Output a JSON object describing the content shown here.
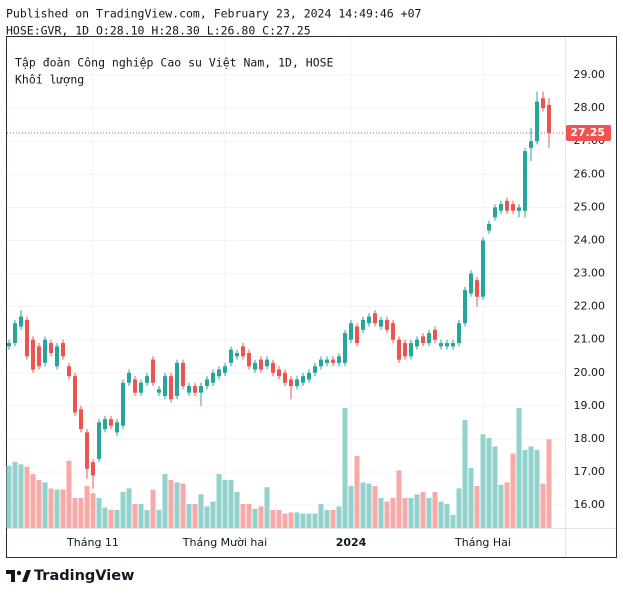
{
  "header": {
    "published": "Published on TradingView.com, February 23, 2024 14:49:46 +07",
    "ohlc_line": "HOSE:GVR, 1D O:28.10 H:28.30 L:26.80 C:27.25"
  },
  "footer": {
    "logo": "TradingView"
  },
  "chart_data": {
    "type": "candlestick",
    "title": "Tập đoàn Công nghiệp Cao su Việt Nam, 1D, HOSE",
    "volume_label": "Khối lượng",
    "categories": [
      null,
      null,
      null,
      null,
      null,
      null,
      null,
      null,
      null,
      null,
      null,
      null,
      null,
      null,
      "Tháng 11",
      null,
      null,
      null,
      null,
      null,
      null,
      null,
      null,
      null,
      null,
      null,
      null,
      null,
      null,
      null,
      null,
      null,
      null,
      null,
      null,
      null,
      "Tháng Mười hai",
      null,
      null,
      null,
      null,
      null,
      null,
      null,
      null,
      null,
      null,
      null,
      null,
      null,
      null,
      null,
      null,
      null,
      null,
      null,
      null,
      "2024",
      null,
      null,
      null,
      null,
      null,
      null,
      null,
      null,
      null,
      null,
      null,
      null,
      null,
      null,
      null,
      null,
      null,
      null,
      null,
      null,
      null,
      "Tháng Hai",
      null,
      null,
      null,
      null,
      null,
      null,
      null,
      null,
      null,
      null,
      null
    ],
    "open": [
      20.8,
      20.9,
      21.4,
      21.6,
      21.0,
      20.8,
      20.3,
      20.9,
      20.2,
      20.9,
      20.2,
      19.9,
      18.9,
      18.2,
      17.3,
      17.4,
      18.3,
      18.6,
      18.2,
      18.4,
      19.7,
      19.8,
      19.4,
      19.7,
      20.4,
      19.4,
      19.3,
      19.9,
      19.3,
      20.3,
      19.4,
      19.6,
      19.4,
      19.6,
      19.7,
      19.9,
      20.0,
      20.3,
      20.5,
      20.8,
      20.6,
      20.1,
      20.4,
      20.2,
      20.3,
      20.1,
      20.0,
      19.8,
      19.6,
      19.7,
      19.8,
      20.0,
      20.2,
      20.3,
      20.4,
      20.3,
      20.3,
      21.0,
      21.4,
      21.3,
      21.5,
      21.8,
      21.4,
      21.6,
      21.5,
      21.0,
      20.9,
      20.5,
      20.8,
      21.1,
      20.9,
      21.3,
      20.8,
      20.8,
      20.8,
      20.9,
      21.5,
      22.4,
      22.8,
      22.3,
      24.3,
      24.7,
      24.9,
      25.2,
      25.1,
      24.9,
      24.9,
      26.8,
      27.0,
      28.3,
      28.1
    ],
    "high": [
      21.0,
      21.6,
      21.9,
      21.7,
      21.1,
      20.9,
      21.1,
      21.0,
      20.9,
      21.0,
      20.3,
      20.0,
      19.0,
      18.3,
      17.4,
      18.6,
      18.7,
      18.7,
      18.6,
      19.8,
      20.1,
      19.9,
      19.8,
      20.0,
      20.5,
      19.6,
      20.0,
      20.0,
      20.4,
      20.4,
      19.7,
      19.7,
      19.7,
      19.9,
      20.1,
      20.2,
      20.3,
      20.8,
      20.7,
      20.9,
      20.7,
      20.4,
      20.5,
      20.5,
      20.4,
      20.2,
      20.1,
      19.9,
      19.9,
      20.0,
      20.1,
      20.3,
      20.5,
      20.5,
      20.5,
      20.6,
      21.3,
      21.6,
      21.5,
      21.7,
      21.8,
      21.9,
      21.7,
      21.7,
      21.6,
      21.1,
      21.0,
      21.0,
      21.1,
      21.2,
      21.3,
      21.4,
      21.0,
      21.0,
      21.0,
      21.6,
      22.6,
      23.1,
      22.9,
      24.1,
      24.6,
      25.1,
      25.2,
      25.3,
      25.2,
      25.1,
      26.8,
      27.4,
      28.5,
      28.5,
      28.3
    ],
    "low": [
      20.7,
      20.8,
      21.3,
      20.4,
      20.0,
      20.1,
      20.2,
      20.5,
      20.1,
      20.4,
      19.8,
      18.7,
      18.2,
      16.8,
      16.5,
      17.3,
      18.2,
      18.3,
      18.1,
      18.3,
      19.6,
      19.3,
      19.3,
      19.6,
      19.6,
      19.3,
      19.2,
      19.1,
      19.2,
      19.5,
      19.3,
      19.3,
      19.0,
      19.5,
      19.6,
      19.8,
      19.9,
      20.2,
      20.4,
      20.4,
      20.1,
      20.0,
      20.0,
      20.1,
      19.9,
      19.8,
      19.6,
      19.2,
      19.5,
      19.6,
      19.7,
      19.9,
      20.1,
      20.2,
      20.2,
      20.2,
      20.2,
      20.9,
      20.8,
      21.2,
      21.4,
      21.4,
      21.3,
      21.2,
      20.9,
      20.3,
      20.4,
      20.4,
      20.7,
      20.8,
      20.8,
      20.9,
      20.7,
      20.7,
      20.7,
      20.8,
      21.4,
      22.3,
      22.0,
      22.2,
      24.2,
      24.6,
      24.8,
      24.8,
      24.8,
      24.7,
      24.7,
      26.4,
      26.9,
      27.9,
      26.8
    ],
    "close": [
      20.9,
      21.5,
      21.7,
      20.5,
      20.1,
      20.2,
      21.0,
      20.6,
      20.8,
      20.5,
      19.9,
      18.8,
      18.3,
      17.1,
      16.9,
      18.5,
      18.6,
      18.4,
      18.5,
      19.7,
      20.0,
      19.4,
      19.7,
      19.9,
      19.7,
      19.5,
      19.9,
      19.2,
      20.3,
      19.6,
      19.6,
      19.4,
      19.6,
      19.8,
      20.0,
      20.1,
      20.2,
      20.7,
      20.6,
      20.5,
      20.2,
      20.3,
      20.1,
      20.4,
      20.0,
      19.9,
      19.7,
      19.6,
      19.8,
      19.9,
      20.0,
      20.2,
      20.4,
      20.4,
      20.3,
      20.5,
      21.2,
      21.5,
      20.9,
      21.6,
      21.7,
      21.5,
      21.6,
      21.3,
      21.0,
      20.4,
      20.5,
      20.9,
      21.0,
      20.9,
      21.2,
      21.0,
      20.9,
      20.9,
      20.9,
      21.5,
      22.5,
      23.0,
      22.3,
      24.0,
      24.5,
      25.0,
      25.1,
      24.9,
      24.9,
      25.0,
      26.7,
      27.0,
      28.2,
      28.0,
      27.25
    ],
    "volume": [
      5.2,
      5.5,
      5.3,
      5.1,
      4.5,
      4.0,
      3.8,
      3.3,
      3.2,
      3.2,
      5.6,
      2.5,
      2.5,
      3.5,
      2.9,
      2.5,
      1.7,
      1.5,
      1.5,
      3.0,
      3.3,
      2.0,
      2.0,
      1.5,
      3.2,
      1.5,
      4.5,
      4.0,
      3.8,
      3.7,
      2.0,
      2.0,
      2.8,
      1.8,
      2.2,
      4.5,
      4.0,
      4.0,
      3.0,
      2.0,
      2.0,
      1.6,
      1.8,
      3.4,
      1.5,
      1.5,
      1.2,
      1.3,
      1.3,
      1.2,
      1.2,
      1.2,
      2.0,
      1.5,
      1.5,
      1.8,
      10,
      3.5,
      6.0,
      3.8,
      3.7,
      3.5,
      2.5,
      2.2,
      2.5,
      4.8,
      2.5,
      2.5,
      2.8,
      3.0,
      2.5,
      3.0,
      2.2,
      2.0,
      1.1,
      3.3,
      9.0,
      5.0,
      3.5,
      7.8,
      7.5,
      6.8,
      3.6,
      3.8,
      6.2,
      10,
      6.5,
      6.8,
      6.5,
      3.7,
      7.4
    ],
    "volume_lim": [
      0,
      10
    ],
    "ylim": [
      15.31,
      30.15
    ],
    "yticks": [
      {
        "value": 16,
        "label": "16.00"
      },
      {
        "value": 17,
        "label": "17.00"
      },
      {
        "value": 18,
        "label": "18.00"
      },
      {
        "value": 19,
        "label": "19.00"
      },
      {
        "value": 20,
        "label": "20.00"
      },
      {
        "value": 21,
        "label": "21.00"
      },
      {
        "value": 22,
        "label": "22.00"
      },
      {
        "value": 23,
        "label": "23.00"
      },
      {
        "value": 24,
        "label": "24.00"
      },
      {
        "value": 25,
        "label": "25.00"
      },
      {
        "value": 26,
        "label": "26.00"
      },
      {
        "value": 27,
        "label": "27.00"
      },
      {
        "value": 28,
        "label": "28.00"
      },
      {
        "value": 29,
        "label": "29.00"
      }
    ],
    "grid": true,
    "last_price_line": true,
    "up_color": "#26a69a",
    "down_color": "#ef5350",
    "up_volume_color": "#92d2cc",
    "down_volume_color": "#f7a9a7"
  }
}
